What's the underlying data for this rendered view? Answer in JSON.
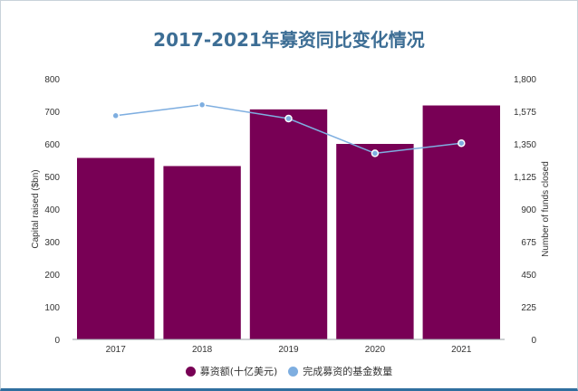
{
  "chart_data": {
    "type": "bar",
    "title": "2017-2021年募资同比变化情况",
    "categories": [
      "2017",
      "2018",
      "2019",
      "2020",
      "2021"
    ],
    "series": [
      {
        "name": "募资额(十亿美元)",
        "type": "bar",
        "axis": "left",
        "color": "#780055",
        "values": [
          557,
          532,
          706,
          600,
          718
        ]
      },
      {
        "name": "完成募资的基金数量",
        "type": "line",
        "axis": "right",
        "color": "#7eaee0",
        "values": [
          1545,
          1620,
          1525,
          1285,
          1355
        ]
      }
    ],
    "ylabel": "Capital raised ($bn)",
    "ylabel_right": "Number of funds closed",
    "ylim": [
      0,
      800
    ],
    "ylim_right": [
      0,
      1800
    ],
    "yticks": [
      "0",
      "100",
      "200",
      "300",
      "400",
      "500",
      "600",
      "700",
      "800"
    ],
    "yticks_right": [
      "0",
      "225",
      "450",
      "675",
      "900",
      "1,125",
      "1,350",
      "1,575",
      "1,800"
    ],
    "grid": false,
    "legend_position": "bottom"
  }
}
